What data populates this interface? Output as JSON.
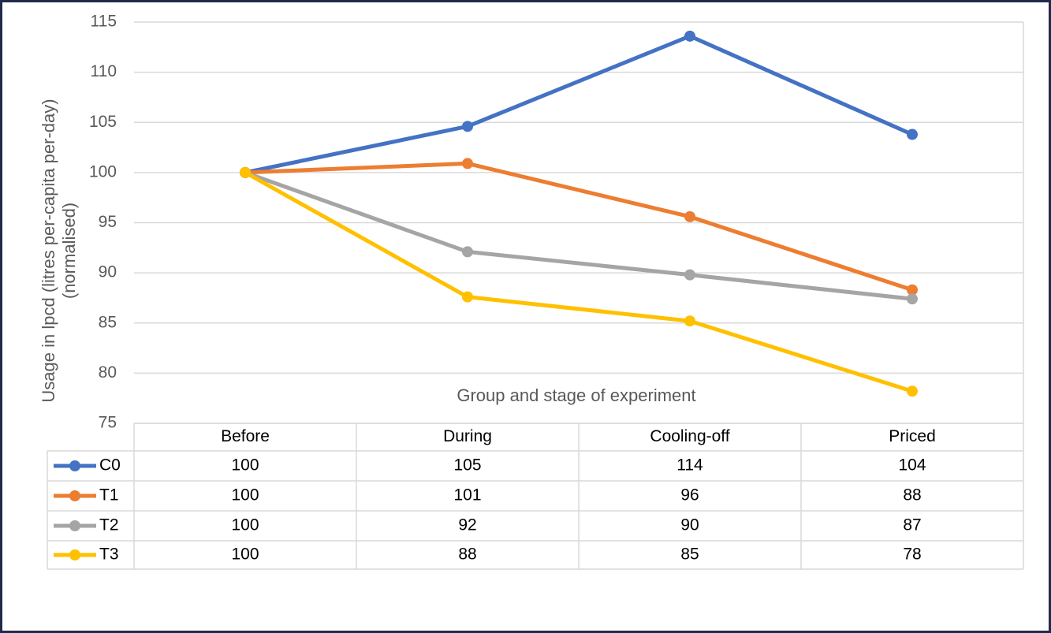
{
  "chart_data": {
    "type": "line",
    "xlabel": "Group and stage of experiment",
    "ylabel_lines": [
      "Usage in lpcd (litres per-capita per-day)",
      "(normalised)"
    ],
    "categories": [
      "Before",
      "During",
      "Cooling-off",
      "Priced"
    ],
    "series": [
      {
        "name": "C0",
        "color": "#4472c4",
        "values": [
          100,
          104.6,
          113.6,
          103.8
        ],
        "value_labels": [
          "100",
          "105",
          "114",
          "104"
        ]
      },
      {
        "name": "T1",
        "color": "#ed7d31",
        "values": [
          100,
          100.9,
          95.6,
          88.3
        ],
        "value_labels": [
          "100",
          "101",
          "96",
          "88"
        ]
      },
      {
        "name": "T2",
        "color": "#a5a5a5",
        "values": [
          100,
          92.1,
          89.8,
          87.4
        ],
        "value_labels": [
          "100",
          "92",
          "90",
          "87"
        ]
      },
      {
        "name": "T3",
        "color": "#ffc000",
        "values": [
          100,
          87.6,
          85.2,
          78.2
        ],
        "value_labels": [
          "100",
          "88",
          "85",
          "78"
        ]
      }
    ],
    "ylim": [
      75,
      115
    ],
    "yticks": [
      75,
      80,
      85,
      90,
      95,
      100,
      105,
      110,
      115
    ],
    "grid": true,
    "data_table": true
  }
}
